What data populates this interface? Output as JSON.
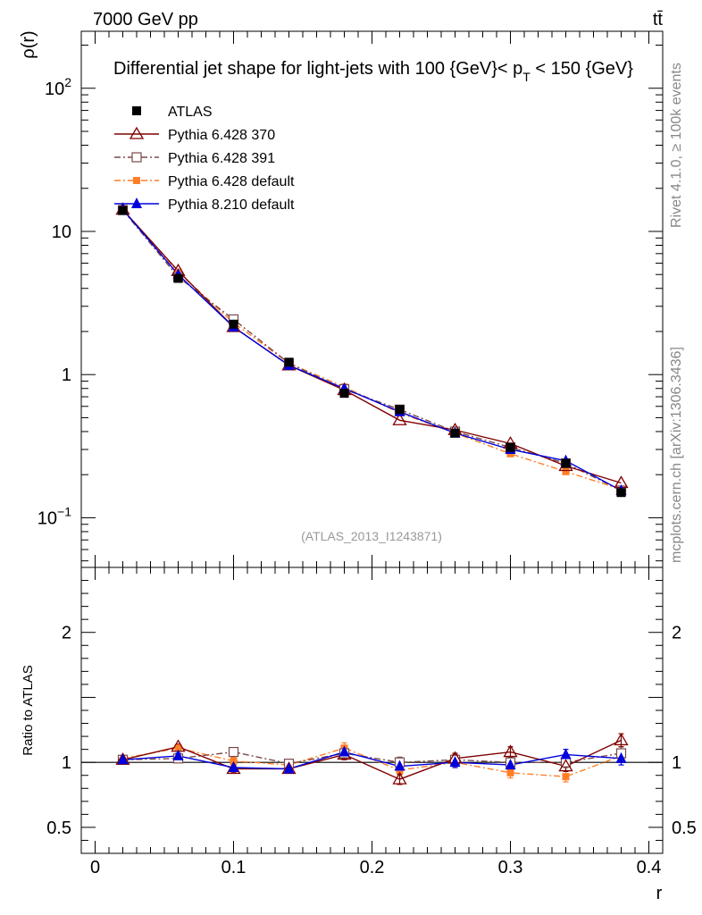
{
  "header": {
    "energy_label": "7000 GeV pp",
    "process_label": "tt̄",
    "title_main": "Differential jet shape for light-jets with 100 {GeV}< p",
    "title_sub": "T",
    "title_end": " < 150 {GeV}",
    "analysis_id": "(ATLAS_2013_I1243871)",
    "side_label_top": "Rivet 4.1.0, ≥ 100k events",
    "side_label_bottom": "mcplots.cern.ch [arXiv:1306.3436]"
  },
  "colors": {
    "atlas": "#000000",
    "p370": "#800000",
    "p391": "#7a4a4a",
    "pdef": "#ff7f27",
    "p8": "#0000dd"
  },
  "chart_data": [
    {
      "type": "line",
      "name": "main",
      "ylabel": "ρ(r)",
      "xlabel": "",
      "yscale": "log",
      "ylim": [
        0.045,
        250
      ],
      "xlim": [
        -0.01,
        0.41
      ],
      "ytick_labels": [
        {
          "value": 100,
          "base": "10",
          "exp": "2"
        },
        {
          "value": 10,
          "base": "10",
          "exp": ""
        },
        {
          "value": 1,
          "base": "1",
          "exp": ""
        },
        {
          "value": 0.1,
          "base": "10",
          "exp": "−1"
        }
      ],
      "x": [
        0.02,
        0.06,
        0.1,
        0.14,
        0.18,
        0.22,
        0.26,
        0.3,
        0.34,
        0.38
      ],
      "series": [
        {
          "key": "atlas",
          "name": "ATLAS",
          "marker": "square-filled",
          "line": "none",
          "values": [
            14.0,
            4.7,
            2.25,
            1.22,
            0.74,
            0.57,
            0.39,
            0.31,
            0.24,
            0.15
          ]
        },
        {
          "key": "p370",
          "name": "Pythia 6.428 370",
          "marker": "triangle-open",
          "line": "solid",
          "values": [
            14.2,
            5.3,
            2.15,
            1.16,
            0.78,
            0.48,
            0.41,
            0.33,
            0.23,
            0.175
          ]
        },
        {
          "key": "p391",
          "name": "Pythia 6.428 391",
          "marker": "square-open",
          "line": "dashdot",
          "values": [
            14.1,
            4.8,
            2.43,
            1.2,
            0.79,
            0.57,
            0.4,
            0.31,
            0.24,
            0.155
          ]
        },
        {
          "key": "pdef",
          "name": "Pythia 6.428 default",
          "marker": "square-filled-small",
          "line": "dashdot",
          "values": [
            14.2,
            5.2,
            2.3,
            1.2,
            0.82,
            0.54,
            0.39,
            0.28,
            0.21,
            0.158
          ]
        },
        {
          "key": "p8",
          "name": "Pythia 8.210 default",
          "marker": "triangle-filled",
          "line": "solid",
          "values": [
            14.2,
            5.0,
            2.15,
            1.16,
            0.8,
            0.55,
            0.39,
            0.3,
            0.25,
            0.155
          ]
        }
      ]
    },
    {
      "type": "line",
      "name": "ratio",
      "ylabel": "Ratio to ATLAS",
      "xlabel": "r",
      "ylim": [
        0.3,
        2.5
      ],
      "xlim": [
        -0.01,
        0.41
      ],
      "ytick_labels": [
        {
          "value": 2,
          "label": "2"
        },
        {
          "value": 1,
          "label": "1"
        },
        {
          "value": 0.5,
          "label": "0.5"
        }
      ],
      "xtick_labels": [
        {
          "value": 0,
          "label": "0"
        },
        {
          "value": 0.1,
          "label": "0.1"
        },
        {
          "value": 0.2,
          "label": "0.2"
        },
        {
          "value": 0.3,
          "label": "0.3"
        },
        {
          "value": 0.4,
          "label": "0.4"
        }
      ],
      "x": [
        0.02,
        0.06,
        0.1,
        0.14,
        0.18,
        0.22,
        0.26,
        0.3,
        0.34,
        0.38
      ],
      "series": [
        {
          "key": "p370",
          "name": "Pythia 6.428 370",
          "values": [
            1.02,
            1.12,
            0.95,
            0.95,
            1.06,
            0.87,
            1.03,
            1.08,
            0.97,
            1.17
          ],
          "errors": [
            0.02,
            0.02,
            0.03,
            0.03,
            0.04,
            0.04,
            0.04,
            0.04,
            0.04,
            0.05
          ]
        },
        {
          "key": "p391",
          "name": "Pythia 6.428 391",
          "values": [
            1.02,
            1.03,
            1.08,
            0.99,
            1.07,
            1.0,
            1.02,
            1.0,
            1.0,
            1.07
          ],
          "errors": [
            0.02,
            0.02,
            0.03,
            0.03,
            0.04,
            0.04,
            0.04,
            0.04,
            0.04,
            0.05
          ]
        },
        {
          "key": "pdef",
          "name": "Pythia 6.428 default",
          "values": [
            1.03,
            1.11,
            1.01,
            0.98,
            1.11,
            0.94,
            1.0,
            0.92,
            0.89,
            1.05
          ],
          "errors": [
            0.02,
            0.02,
            0.03,
            0.03,
            0.04,
            0.04,
            0.04,
            0.04,
            0.04,
            0.05
          ]
        },
        {
          "key": "p8",
          "name": "Pythia 8.210 default",
          "values": [
            1.02,
            1.05,
            0.96,
            0.95,
            1.08,
            0.97,
            1.0,
            0.98,
            1.06,
            1.03
          ],
          "errors": [
            0.02,
            0.02,
            0.03,
            0.03,
            0.04,
            0.04,
            0.04,
            0.04,
            0.04,
            0.05
          ]
        }
      ]
    }
  ]
}
